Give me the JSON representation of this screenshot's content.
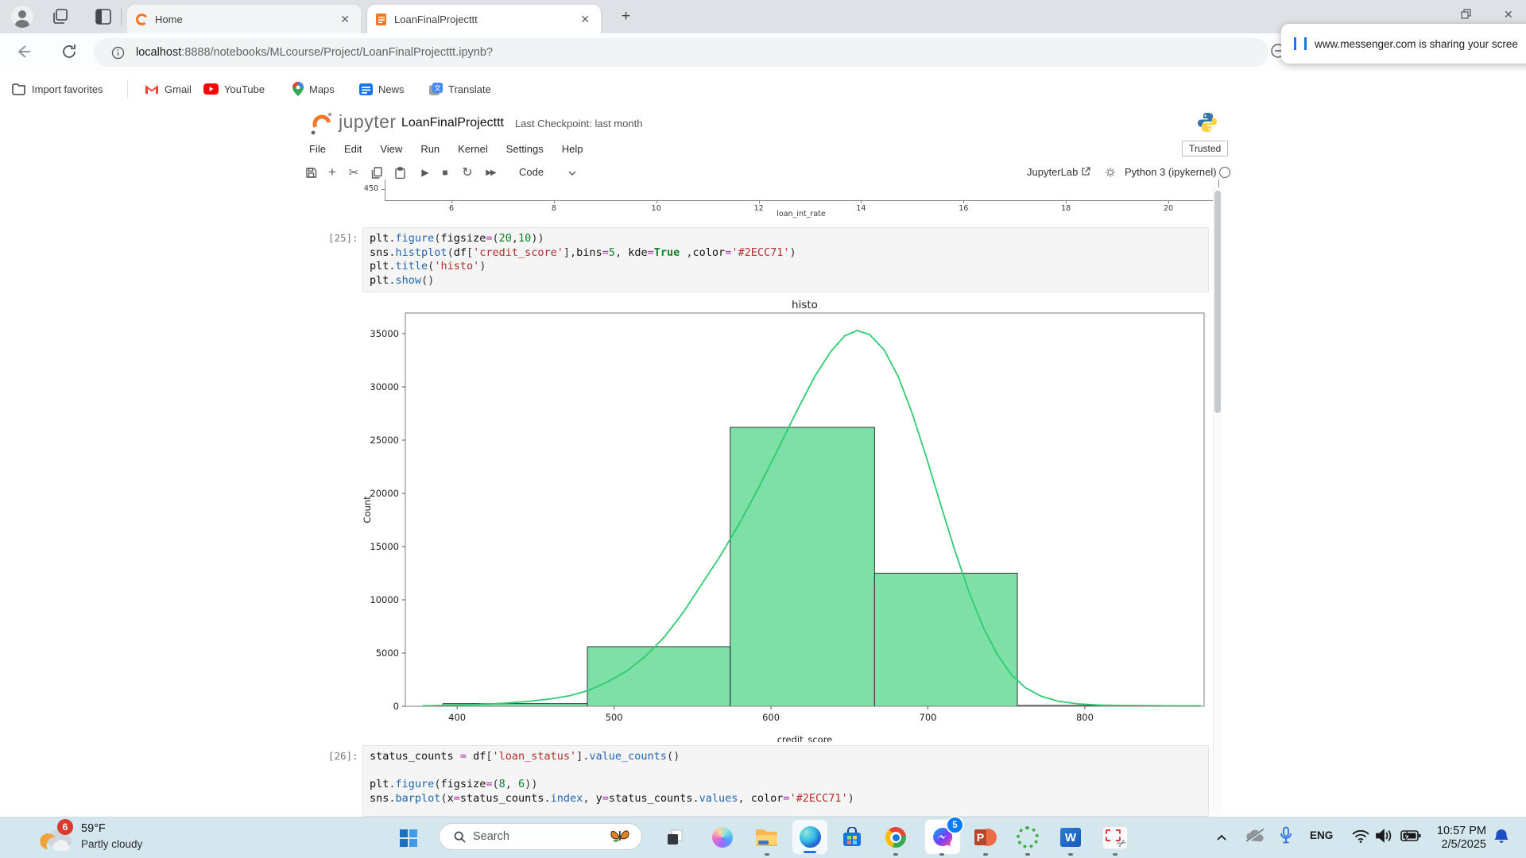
{
  "browser": {
    "tabs": [
      {
        "label": "Home"
      },
      {
        "label": "LoanFinalProjecttt"
      }
    ],
    "new_tab_glyph": "+",
    "url": {
      "host": "localhost",
      "rest": ":8888/notebooks/MLcourse/Project/LoanFinalProjecttt.ipynb?"
    },
    "share_banner": "www.messenger.com is sharing your scree",
    "favorites": [
      "Import favorites",
      "Gmail",
      "YouTube",
      "Maps",
      "News",
      "Translate"
    ]
  },
  "jupyter": {
    "brand": "jupyter",
    "title": "LoanFinalProjecttt",
    "checkpoint": "Last Checkpoint: last month",
    "menu": [
      "File",
      "Edit",
      "View",
      "Run",
      "Kernel",
      "Settings",
      "Help"
    ],
    "trusted": "Trusted",
    "toolbar": {
      "cell_type": "Code",
      "jupyterlab": "JupyterLab",
      "kernel": "Python 3 (ipykernel)"
    }
  },
  "cells": [
    {
      "prompt": "[25]:",
      "lines": [
        [
          [
            "n",
            "plt"
          ],
          [
            "d",
            "."
          ],
          [
            "f",
            "figure"
          ],
          [
            "d",
            "("
          ],
          [
            "n",
            "figsize"
          ],
          [
            "o",
            "="
          ],
          [
            "d",
            "("
          ],
          [
            "m",
            "20"
          ],
          [
            "d",
            ","
          ],
          [
            "m",
            "10"
          ],
          [
            "d",
            "))"
          ]
        ],
        [
          [
            "n",
            "sns"
          ],
          [
            "d",
            "."
          ],
          [
            "f",
            "histplot"
          ],
          [
            "d",
            "("
          ],
          [
            "n",
            "df"
          ],
          [
            "d",
            "["
          ],
          [
            "s",
            "'credit_score'"
          ],
          [
            "d",
            "],"
          ],
          [
            "n",
            "bins"
          ],
          [
            "o",
            "="
          ],
          [
            "m",
            "5"
          ],
          [
            "d",
            ", "
          ],
          [
            "n",
            "kde"
          ],
          [
            "o",
            "="
          ],
          [
            "k",
            "True"
          ],
          [
            "d",
            " ,"
          ],
          [
            "n",
            "color"
          ],
          [
            "o",
            "="
          ],
          [
            "s",
            "'#2ECC71'"
          ],
          [
            "d",
            ")"
          ]
        ],
        [
          [
            "n",
            "plt"
          ],
          [
            "d",
            "."
          ],
          [
            "f",
            "title"
          ],
          [
            "d",
            "("
          ],
          [
            "s",
            "'histo'"
          ],
          [
            "d",
            ")"
          ]
        ],
        [
          [
            "n",
            "plt"
          ],
          [
            "d",
            "."
          ],
          [
            "f",
            "show"
          ],
          [
            "d",
            "()"
          ]
        ]
      ]
    },
    {
      "prompt": "[26]:",
      "lines": [
        [
          [
            "n",
            "status_counts "
          ],
          [
            "o",
            "="
          ],
          [
            "n",
            " df"
          ],
          [
            "d",
            "["
          ],
          [
            "s",
            "'loan_status'"
          ],
          [
            "d",
            "]."
          ],
          [
            "f",
            "value_counts"
          ],
          [
            "d",
            "()"
          ]
        ],
        [],
        [
          [
            "n",
            "plt"
          ],
          [
            "d",
            "."
          ],
          [
            "f",
            "figure"
          ],
          [
            "d",
            "("
          ],
          [
            "n",
            "figsize"
          ],
          [
            "o",
            "="
          ],
          [
            "d",
            "("
          ],
          [
            "m",
            "8"
          ],
          [
            "d",
            ", "
          ],
          [
            "m",
            "6"
          ],
          [
            "d",
            "))"
          ]
        ],
        [
          [
            "n",
            "sns"
          ],
          [
            "d",
            "."
          ],
          [
            "f",
            "barplot"
          ],
          [
            "d",
            "("
          ],
          [
            "n",
            "x"
          ],
          [
            "o",
            "="
          ],
          [
            "n",
            "status_counts"
          ],
          [
            "d",
            "."
          ],
          [
            "f",
            "index"
          ],
          [
            "d",
            ", "
          ],
          [
            "n",
            "y"
          ],
          [
            "o",
            "="
          ],
          [
            "n",
            "status_counts"
          ],
          [
            "d",
            "."
          ],
          [
            "f",
            "values"
          ],
          [
            "d",
            ", "
          ],
          [
            "n",
            "color"
          ],
          [
            "o",
            "="
          ],
          [
            "s",
            "'#2ECC71'"
          ],
          [
            "d",
            ")"
          ]
        ]
      ]
    }
  ],
  "chart_data": [
    {
      "type": "bar",
      "subtype": "histogram-with-kde",
      "title": "histo",
      "xlabel": "credit_score",
      "ylabel": "Count",
      "bin_edges": [
        391,
        483,
        574,
        666,
        757,
        849
      ],
      "counts": [
        250,
        5600,
        26200,
        12500,
        80
      ],
      "bar_color": "#2ECC71",
      "kde_color": "#2ECC71",
      "xlim": [
        367,
        876
      ],
      "ylim": [
        0,
        36940
      ],
      "xticks": [
        400,
        500,
        600,
        700,
        800
      ],
      "yticks": [
        0,
        5000,
        10000,
        15000,
        20000,
        25000,
        30000,
        35000
      ],
      "grid": false,
      "kde_points": [
        [
          378,
          40
        ],
        [
          395,
          90
        ],
        [
          412,
          160
        ],
        [
          430,
          280
        ],
        [
          445,
          450
        ],
        [
          460,
          700
        ],
        [
          472,
          1000
        ],
        [
          484,
          1500
        ],
        [
          496,
          2300
        ],
        [
          508,
          3300
        ],
        [
          520,
          4700
        ],
        [
          532,
          6500
        ],
        [
          544,
          8800
        ],
        [
          556,
          11500
        ],
        [
          568,
          14200
        ],
        [
          580,
          17200
        ],
        [
          592,
          20500
        ],
        [
          604,
          24000
        ],
        [
          616,
          27600
        ],
        [
          628,
          31000
        ],
        [
          638,
          33300
        ],
        [
          647,
          34800
        ],
        [
          655,
          35300
        ],
        [
          663,
          34900
        ],
        [
          672,
          33500
        ],
        [
          681,
          31000
        ],
        [
          690,
          27500
        ],
        [
          699,
          23400
        ],
        [
          708,
          19000
        ],
        [
          717,
          14700
        ],
        [
          726,
          10800
        ],
        [
          735,
          7500
        ],
        [
          744,
          4900
        ],
        [
          753,
          3000
        ],
        [
          762,
          1750
        ],
        [
          772,
          950
        ],
        [
          783,
          480
        ],
        [
          795,
          230
        ],
        [
          810,
          110
        ],
        [
          830,
          60
        ],
        [
          855,
          40
        ],
        [
          874,
          35
        ]
      ]
    },
    {
      "type": "bar",
      "subtype": "partial-bottom-edge-visible",
      "xlabel": "loan_int_rate",
      "visible_ytick": "450",
      "xticks": [
        6,
        8,
        10,
        12,
        14,
        16,
        18,
        20
      ]
    }
  ],
  "taskbar": {
    "weather_badge": "6",
    "weather_temp": "59°F",
    "weather_cond": "Partly cloudy",
    "search": "Search",
    "messenger_badge": "5",
    "lang": "ENG",
    "time": "10:57 PM",
    "date": "2/5/2025"
  }
}
